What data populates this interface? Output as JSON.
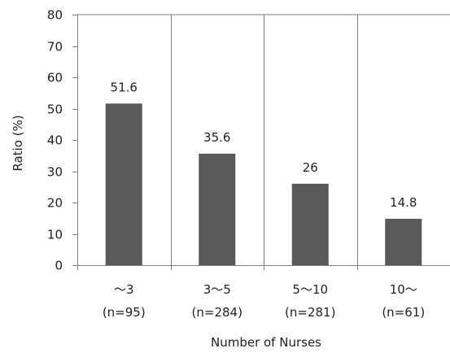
{
  "chart_data": {
    "type": "bar",
    "categories": [
      {
        "line1": "～3",
        "line2": "(n=95)"
      },
      {
        "line1": "3～5",
        "line2": "(n=284)"
      },
      {
        "line1": "5～10",
        "line2": "(n=281)"
      },
      {
        "line1": "10～",
        "line2": "(n=61)"
      }
    ],
    "values": [
      51.6,
      35.6,
      26,
      14.8
    ],
    "value_labels": [
      "51.6",
      "35.6",
      "26",
      "14.8"
    ],
    "xlabel": "Number of Nurses",
    "ylabel": "Ratio (%)",
    "ylim": [
      0,
      80
    ],
    "yticks": [
      0,
      10,
      20,
      30,
      40,
      50,
      60,
      70,
      80
    ],
    "grid": "vertical category dividers",
    "bar_color": "#595959",
    "axis_color": "#7f7f7f"
  }
}
